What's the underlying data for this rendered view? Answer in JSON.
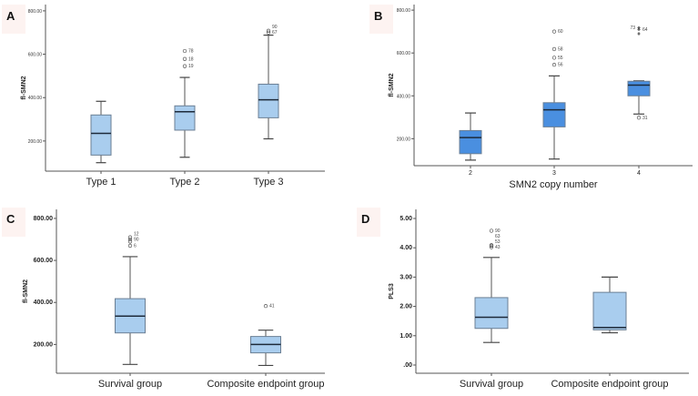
{
  "colors": {
    "box_light": "#a9cdee",
    "box_dark": "#4a8fe0",
    "box_stroke": "#6b7f94",
    "axis": "#555555",
    "median": "#1d2a3a",
    "letter_bg": "#fdf3f1"
  },
  "chart_data": [
    {
      "panel": "A",
      "type": "box",
      "title": "",
      "xlabel": "",
      "ylabel": "fl-SMN2",
      "yticks": [
        "200.00",
        "400.00",
        "600.00",
        "800.00"
      ],
      "ytick_values": [
        200,
        400,
        600,
        800
      ],
      "ylim": [
        61,
        829
      ],
      "categories": [
        "Type 1",
        "Type 2",
        "Type 3"
      ],
      "boxes": [
        {
          "min": 100,
          "q1": 135,
          "median": 235,
          "q3": 320,
          "max": 383,
          "outliers": []
        },
        {
          "min": 125,
          "q1": 250,
          "median": 335,
          "q3": 362,
          "max": 493,
          "outliers": [
            {
              "v": 545,
              "label": "19"
            },
            {
              "v": 578,
              "label": "18"
            },
            {
              "v": 615,
              "label": "78"
            }
          ]
        },
        {
          "min": 210,
          "q1": 307,
          "median": 390,
          "q3": 462,
          "max": 688,
          "outliers": [
            {
              "v": 700,
              "label": "67"
            },
            {
              "v": 708,
              "label": "90"
            }
          ]
        }
      ]
    },
    {
      "panel": "B",
      "type": "box",
      "title": "",
      "xlabel": "SMN2 copy number",
      "ylabel": "fl-SMN2",
      "yticks": [
        "200.00",
        "400.00",
        "600.00",
        "800.00"
      ],
      "ytick_values": [
        200,
        400,
        600,
        800
      ],
      "ylim": [
        74,
        826
      ],
      "categories": [
        "2",
        "3",
        "4"
      ],
      "boxes": [
        {
          "min": 100,
          "q1": 130,
          "median": 205,
          "q3": 238,
          "max": 320,
          "outliers": []
        },
        {
          "min": 105,
          "q1": 255,
          "median": 335,
          "q3": 368,
          "max": 493,
          "outliers": [
            {
              "v": 545,
              "label": "56"
            },
            {
              "v": 578,
              "label": "55"
            },
            {
              "v": 618,
              "label": "58"
            },
            {
              "v": 700,
              "label": "60"
            }
          ]
        },
        {
          "min": 315,
          "q1": 400,
          "median": 450,
          "q3": 468,
          "max": 470,
          "outliers": [
            {
              "v": 298,
              "label": "31"
            }
          ],
          "extremes": [
            {
              "v": 690,
              "label": ""
            },
            {
              "v": 710,
              "label": "64"
            },
            {
              "v": 718,
              "label": "73"
            }
          ]
        }
      ]
    },
    {
      "panel": "C",
      "type": "box",
      "title": "",
      "xlabel": "",
      "ylabel": "fl-SMN2",
      "yticks": [
        "200.00",
        "400.00",
        "600.00",
        "800.00"
      ],
      "ytick_values": [
        200,
        400,
        600,
        800
      ],
      "ylim": [
        63,
        843
      ],
      "categories": [
        "Survival group",
        "Composite endpoint group"
      ],
      "boxes": [
        {
          "min": 105,
          "q1": 255,
          "median": 335,
          "q3": 418,
          "max": 618,
          "outliers": [
            {
              "v": 670,
              "label": "6"
            },
            {
              "v": 690,
              "label": ""
            },
            {
              "v": 700,
              "label": "90"
            },
            {
              "v": 710,
              "label": "12"
            }
          ]
        },
        {
          "min": 100,
          "q1": 160,
          "median": 200,
          "q3": 238,
          "max": 268,
          "outliers": [
            {
              "v": 383,
              "label": "41"
            }
          ]
        }
      ]
    },
    {
      "panel": "D",
      "type": "box",
      "title": "",
      "xlabel": "",
      "ylabel": "PLS3",
      "yticks": [
        ".00",
        "1.00",
        "2.00",
        "3.00",
        "4.00",
        "5.00"
      ],
      "ytick_values": [
        0,
        1,
        2,
        3,
        4,
        5
      ],
      "ylim": [
        -0.28,
        5.31
      ],
      "categories": [
        "Survival group",
        "Composite endpoint group"
      ],
      "boxes": [
        {
          "min": 0.77,
          "q1": 1.25,
          "median": 1.63,
          "q3": 2.3,
          "max": 3.67,
          "outliers": [
            {
              "v": 4.02,
              "label": "43"
            },
            {
              "v": 4.07,
              "label": "53"
            },
            {
              "v": 4.09,
              "label": "63"
            },
            {
              "v": 4.58,
              "label": "90"
            }
          ]
        },
        {
          "min": 1.1,
          "q1": 1.2,
          "median": 1.28,
          "q3": 2.48,
          "max": 3.0,
          "outliers": []
        }
      ]
    }
  ]
}
